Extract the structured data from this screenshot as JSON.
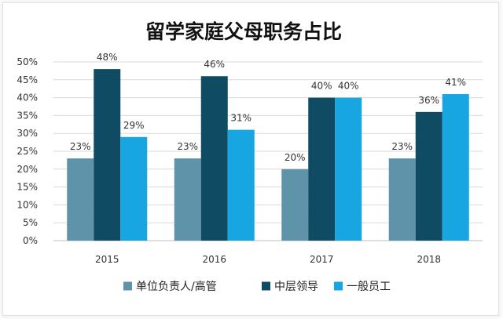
{
  "chart_data": {
    "type": "bar",
    "title": "留学家庭父母职务占比",
    "categories": [
      "2015",
      "2016",
      "2017",
      "2018"
    ],
    "series": [
      {
        "name": "单位负责人/高管",
        "values": [
          23,
          23,
          20,
          23
        ],
        "labels": [
          "23%",
          "23%",
          "20%",
          "23%"
        ],
        "color": "#5f93aa"
      },
      {
        "name": "中层领导",
        "values": [
          48,
          46,
          40,
          36
        ],
        "labels": [
          "48%",
          "46%",
          "40%",
          "36%"
        ],
        "color": "#0f4b63"
      },
      {
        "name": "一般员工",
        "values": [
          29,
          31,
          40,
          41
        ],
        "labels": [
          "29%",
          "31%",
          "40%",
          "41%"
        ],
        "color": "#18a6e2"
      }
    ],
    "ylim": [
      0,
      50
    ],
    "yticks": [
      0,
      5,
      10,
      15,
      20,
      25,
      30,
      35,
      40,
      45,
      50
    ],
    "ytick_labels": [
      "0%",
      "5%",
      "10%",
      "15%",
      "20%",
      "25%",
      "30%",
      "35%",
      "40%",
      "45%",
      "50%"
    ],
    "grid": true,
    "legend_position": "bottom",
    "xlabel": "",
    "ylabel": ""
  }
}
